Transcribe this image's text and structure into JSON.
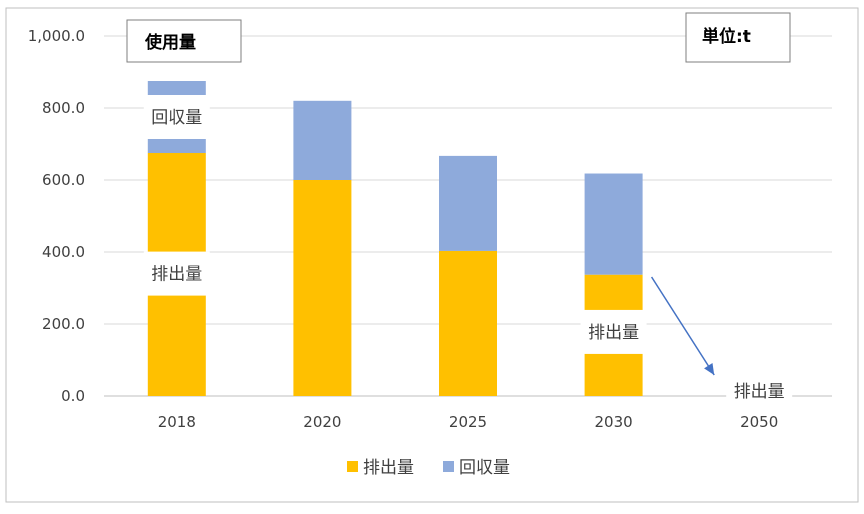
{
  "chart_data": {
    "type": "bar",
    "stacked": true,
    "categories": [
      "2018",
      "2020",
      "2025",
      "2030",
      "2050"
    ],
    "series": [
      {
        "name": "排出量",
        "color": "#ffc000",
        "values": [
          675,
          600,
          403,
          337,
          0
        ]
      },
      {
        "name": "回収量",
        "color": "#8eaadb",
        "values": [
          200,
          220,
          264,
          281,
          0
        ]
      }
    ],
    "y_axis": {
      "min": 0,
      "max": 1000,
      "step": 200,
      "tick_labels": [
        "0.0",
        "200.0",
        "400.0",
        "600.0",
        "800.0",
        "1,000.0"
      ]
    },
    "grid": true,
    "legend_position": "bottom",
    "title_box": "使用量",
    "unit_box": "単位:t",
    "annotations": [
      {
        "category": "2018",
        "text": "回収量"
      },
      {
        "category": "2018",
        "text": "排出量"
      },
      {
        "category": "2030",
        "text": "排出量"
      },
      {
        "category": "2050",
        "text": "排出量"
      }
    ],
    "arrow": {
      "from_category": "2030",
      "to_category": "2050"
    }
  },
  "colors": {
    "grid": "#d9d9d9",
    "axis": "#bfbfbf",
    "arrow": "#4472c4",
    "frame": "#bfbfbf"
  }
}
